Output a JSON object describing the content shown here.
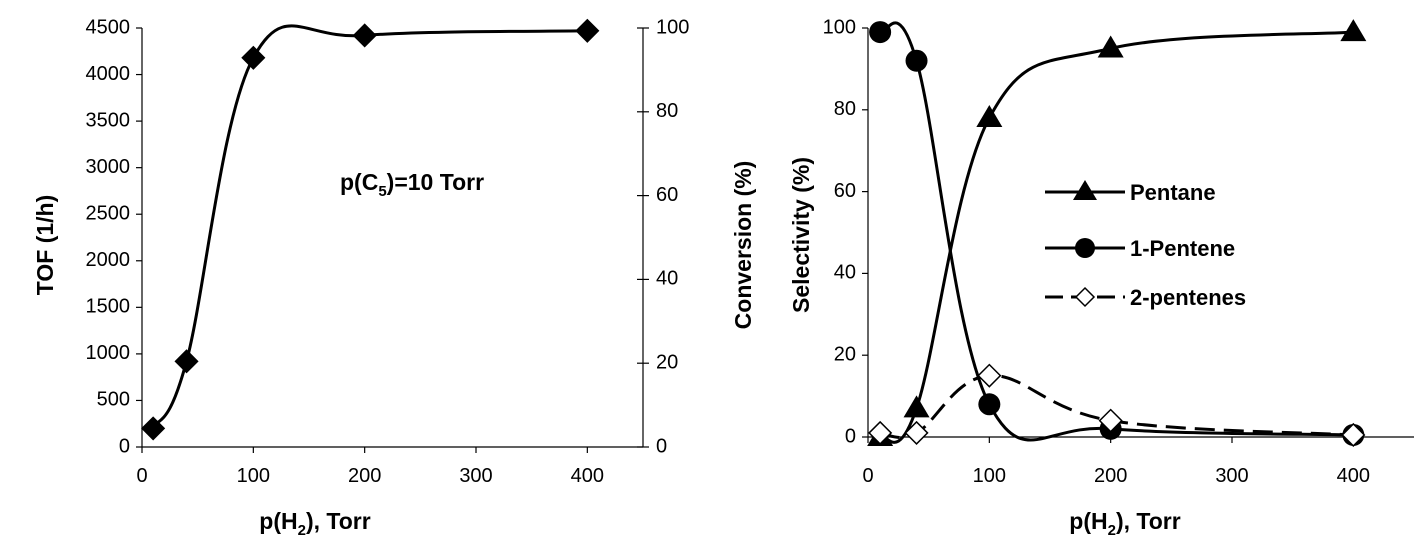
{
  "chart_data": [
    {
      "type": "line",
      "x": [
        10,
        40,
        100,
        200,
        400
      ],
      "series": [
        {
          "values": [
            200,
            920,
            4180,
            4420,
            4470
          ],
          "marker": "diamond",
          "color": "#000000"
        }
      ],
      "xlabel": "p(H",
      "xlabel_sub": "2",
      "xlabel_tail": "), Torr",
      "ylabel": "TOF (1/h)",
      "y2label": "Conversion (%)",
      "xlim": [
        0,
        450
      ],
      "ylim": [
        0,
        4500
      ],
      "y2lim": [
        0,
        100
      ],
      "xticks": [
        "0",
        "100",
        "200",
        "300",
        "400"
      ],
      "yticks": [
        "0",
        "500",
        "1000",
        "1500",
        "2000",
        "2500",
        "3000",
        "3500",
        "4000",
        "4500"
      ],
      "y2ticks": [
        "0",
        "20",
        "40",
        "60",
        "80",
        "100"
      ],
      "annotation": {
        "pre": "p(C",
        "sub": "5",
        "post": ")=10 Torr"
      },
      "grid": false
    },
    {
      "type": "line",
      "x": [
        10,
        40,
        100,
        200,
        400
      ],
      "series": [
        {
          "name": "Pentane",
          "values": [
            0,
            7,
            78,
            95,
            99
          ],
          "marker": "triangle",
          "fill": "#000000",
          "dash": "solid"
        },
        {
          "name": "1-Pentene",
          "values": [
            99,
            92,
            8,
            2,
            0.5
          ],
          "marker": "circle",
          "fill": "#000000",
          "dash": "solid"
        },
        {
          "name": "2-pentenes",
          "values": [
            1,
            1,
            15,
            4,
            0.5
          ],
          "marker": "diamond",
          "fill": "#ffffff",
          "dash": "dashed"
        }
      ],
      "xlabel": "p(H",
      "xlabel_sub": "2",
      "xlabel_tail": "), Torr",
      "ylabel": "Selectivity (%)",
      "xlim": [
        0,
        450
      ],
      "ylim": [
        0,
        100
      ],
      "xticks": [
        "0",
        "100",
        "200",
        "300",
        "400"
      ],
      "yticks": [
        "0",
        "20",
        "40",
        "60",
        "80",
        "100"
      ],
      "legend": "right",
      "grid": false
    }
  ]
}
